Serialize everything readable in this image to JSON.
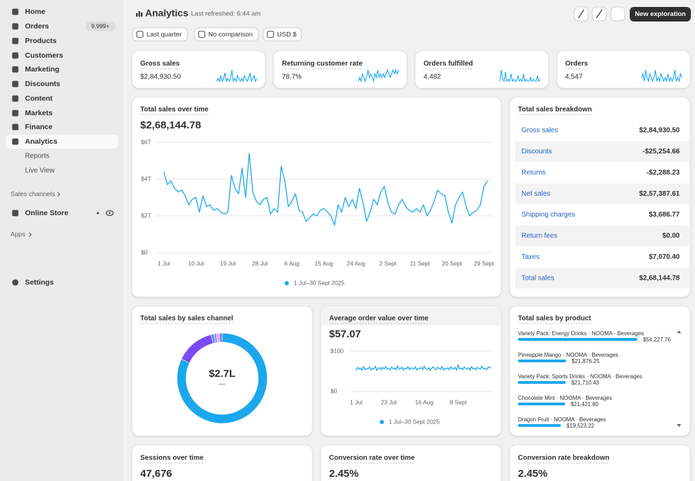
{
  "sidebar": {
    "items": [
      "Home",
      "Orders",
      "Products",
      "Customers",
      "Marketing",
      "Discounts",
      "Content",
      "Markets",
      "Finance",
      "Analytics",
      "Reports",
      "Live View"
    ],
    "orders_badge": "9,999+",
    "sales_channels": "Sales channels",
    "online_store": "Online Store",
    "apps": "Apps",
    "settings": "Settings"
  },
  "header": {
    "title": "Analytics",
    "refreshed": "Last refreshed: 6:44 am",
    "new_button": "New exploration"
  },
  "filters": [
    "Last quarter",
    "No comparison",
    "USD $"
  ],
  "kpis": [
    {
      "label": "Gross sales",
      "value": "$2,84,930.50"
    },
    {
      "label": "Returning customer rate",
      "value": "78.7%"
    },
    {
      "label": "Orders fulfilled",
      "value": "4,482"
    },
    {
      "label": "Orders",
      "value": "4,547"
    }
  ],
  "breakdown": {
    "title": "Total sales breakdown",
    "rows": [
      [
        "Gross sales",
        "$2,84,930.50"
      ],
      [
        "Discounts",
        "-$25,254.66"
      ],
      [
        "Returns",
        "-$2,288.23"
      ],
      [
        "Net sales",
        "$2,57,387.61"
      ],
      [
        "Shipping charges",
        "$3,686.77"
      ],
      [
        "Return fees",
        "$0.00"
      ],
      [
        "Taxes",
        "$7,070.40"
      ],
      [
        "Total sales",
        "$2,68,144.78"
      ]
    ]
  },
  "metrics": [
    {
      "title": "Sessions over time",
      "value": "47,676"
    },
    {
      "title": "Conversion rate over time",
      "value": "2.45%"
    },
    {
      "title": "Conversion rate breakdown",
      "value": "2.45%"
    }
  ],
  "chart_data": [
    {
      "type": "line",
      "title": "Total sales over time",
      "headline": "$2,68,144.78",
      "categories": [
        "1 Jul",
        null,
        null,
        null,
        null,
        null,
        null,
        null,
        null,
        "10 Jul",
        null,
        null,
        null,
        null,
        null,
        null,
        null,
        null,
        "19 Jul",
        null,
        null,
        null,
        null,
        null,
        null,
        null,
        null,
        "28 Jul",
        null,
        null,
        null,
        null,
        null,
        null,
        null,
        null,
        "6 Aug",
        null,
        null,
        null,
        null,
        null,
        null,
        null,
        null,
        "15 Aug",
        null,
        null,
        null,
        null,
        null,
        null,
        null,
        null,
        "24 Aug",
        null,
        null,
        null,
        null,
        null,
        null,
        null,
        null,
        "2 Sept",
        null,
        null,
        null,
        null,
        null,
        null,
        null,
        null,
        "11 Sept",
        null,
        null,
        null,
        null,
        null,
        null,
        null,
        null,
        "20 Sept",
        null,
        null,
        null,
        null,
        null,
        null,
        null,
        null,
        "29 Sept",
        null
      ],
      "series": [
        {
          "name": "1 Jul–30 Sept 2025",
          "color": "#1aa7ec",
          "values": [
            4.4,
            3.7,
            3.9,
            3.5,
            3.3,
            3.4,
            3.1,
            2.6,
            2.9,
            3.0,
            2.2,
            3.1,
            2.5,
            2.6,
            2.3,
            2.4,
            2.2,
            2.1,
            2.2,
            4.2,
            3.5,
            3.2,
            4.6,
            3.0,
            5.4,
            3.3,
            2.8,
            2.6,
            2.9,
            3.0,
            2.1,
            2.4,
            2.2,
            4.7,
            3.9,
            2.5,
            2.8,
            3.2,
            2.3,
            2.2,
            1.7,
            1.9,
            2.1,
            2.0,
            2.3,
            2.4,
            2.2,
            2.0,
            1.5,
            2.6,
            2.2,
            3.0,
            2.5,
            2.9,
            2.4,
            3.5,
            2.7,
            1.7,
            2.2,
            2.9,
            2.6,
            3.3,
            3.6,
            2.7,
            2.2,
            2.1,
            2.6,
            2.9,
            2.5,
            2.3,
            2.2,
            2.4,
            2.2,
            2.6,
            2.0,
            2.3,
            2.8,
            3.4,
            3.2,
            3.1,
            2.2,
            1.6,
            2.6,
            3.0,
            3.3,
            2.5,
            2.0,
            2.2,
            2.3,
            2.6,
            3.6,
            3.9
          ]
        }
      ],
      "ylim": [
        0,
        6
      ],
      "yticks": [
        {
          "value": 0,
          "label": "$0"
        },
        {
          "value": 2,
          "label": "$2T"
        },
        {
          "value": 4,
          "label": "$4T"
        },
        {
          "value": 6,
          "label": "$6T"
        }
      ],
      "grid": true
    },
    {
      "type": "pie",
      "title": "Total sales by sales channel",
      "donut": true,
      "center_label": "$2.7L",
      "center_sublabel": "—",
      "values": [
        82,
        14,
        1,
        1,
        1,
        1
      ],
      "colors": [
        "#1aa7ec",
        "#7b4cf5",
        "#5d8bf4",
        "#a88bf7",
        "#c3b4fa",
        "#8e6cf5"
      ]
    },
    {
      "type": "line",
      "title": "Average order value over time",
      "headline": "$57.07",
      "categories": [
        "1 Jul",
        null,
        null,
        null,
        null,
        null,
        null,
        null,
        null,
        null,
        null,
        null,
        null,
        null,
        null,
        null,
        null,
        null,
        null,
        null,
        null,
        null,
        "23 Jul",
        null,
        null,
        null,
        null,
        null,
        null,
        null,
        null,
        null,
        null,
        null,
        null,
        null,
        null,
        null,
        null,
        null,
        null,
        null,
        null,
        null,
        null,
        null,
        "16 Aug",
        null,
        null,
        null,
        null,
        null,
        null,
        null,
        null,
        null,
        null,
        null,
        null,
        null,
        null,
        null,
        null,
        null,
        null,
        null,
        null,
        null,
        null,
        "8 Sept",
        null,
        null,
        null,
        null,
        null,
        null,
        null,
        null,
        null,
        null,
        null,
        null,
        null,
        null,
        null,
        null,
        null,
        null,
        null,
        null,
        null,
        null
      ],
      "series": [
        {
          "name": "1 Jul–30 Sept 2025",
          "color": "#1aa7ec",
          "values": [
            52,
            60,
            55,
            58,
            53,
            62,
            54,
            57,
            56,
            61,
            53,
            58,
            55,
            63,
            52,
            57,
            59,
            54,
            60,
            56,
            62,
            55,
            57,
            53,
            61,
            56,
            58,
            54,
            64,
            55,
            57,
            60,
            53,
            58,
            56,
            62,
            54,
            59,
            57,
            55,
            61,
            53,
            58,
            56,
            60,
            54,
            63,
            57,
            55,
            59,
            53,
            58,
            61,
            56,
            54,
            60,
            57,
            55,
            62,
            53,
            58,
            56,
            59,
            54,
            61,
            57,
            55,
            60,
            53,
            66,
            56,
            58,
            54,
            61,
            57,
            55,
            59,
            53,
            62,
            56,
            58,
            54,
            60,
            57,
            55,
            63,
            56,
            58,
            54,
            59,
            62,
            57
          ]
        }
      ],
      "ylim": [
        0,
        100
      ],
      "yticks": [
        {
          "value": 0,
          "label": "$0"
        },
        {
          "value": 100,
          "label": "$100"
        }
      ],
      "grid": true
    },
    {
      "type": "bar",
      "orientation": "horizontal",
      "title": "Total sales by product",
      "color": "#1aa7ec",
      "categories": [
        "Variety Pack: Energy Drinks · NOOMA · Beverages",
        "Pineapple Mango · NOOMA · Beverages",
        "Variety Pack: Sports Drinks · NOOMA · Beverages",
        "Chocolate Mint · NOOMA · Beverages",
        "Dragon Fruit · NOOMA · Beverages"
      ],
      "values": [
        54227.76,
        21876.25,
        21710.43,
        21421.8,
        19523.22
      ],
      "value_labels": [
        "$54,227.76",
        "$21,876.25",
        "$21,710.43",
        "$21,421.80",
        "$19,523.22"
      ]
    },
    {
      "type": "sparkline",
      "color": "#1aa7ec",
      "values": [
        3,
        4,
        3,
        5,
        3,
        4,
        6,
        3,
        4,
        3,
        4,
        7,
        3,
        4,
        3,
        5,
        4,
        3,
        4,
        3,
        5,
        4,
        3,
        4,
        6,
        3,
        4,
        5,
        3,
        4
      ]
    },
    {
      "type": "sparkline",
      "color": "#1aa7ec",
      "values": [
        5,
        6,
        5,
        7,
        6,
        5,
        6,
        8,
        6,
        7,
        6,
        5,
        7,
        6,
        8,
        6,
        7,
        6,
        7,
        6,
        7,
        8,
        7,
        6,
        7,
        8,
        7,
        8,
        7,
        8
      ]
    },
    {
      "type": "sparkline",
      "color": "#1aa7ec",
      "values": [
        2,
        8,
        3,
        2,
        7,
        2,
        3,
        2,
        6,
        2,
        3,
        2,
        2,
        5,
        2,
        3,
        2,
        6,
        2,
        3,
        2,
        2,
        4,
        2,
        3,
        2,
        2,
        5,
        2,
        3
      ]
    },
    {
      "type": "sparkline",
      "color": "#1aa7ec",
      "values": [
        4,
        5,
        3,
        6,
        4,
        3,
        5,
        4,
        3,
        4,
        6,
        3,
        4,
        3,
        5,
        4,
        3,
        4,
        3,
        5,
        3,
        4,
        3,
        4,
        6,
        3,
        4,
        3,
        5,
        4
      ]
    }
  ]
}
